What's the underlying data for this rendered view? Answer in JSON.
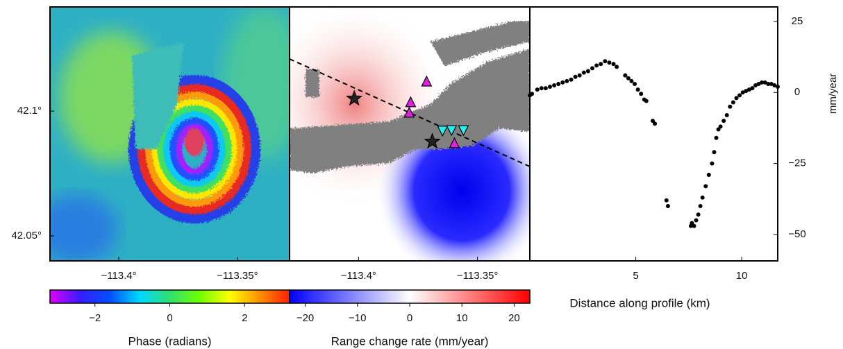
{
  "chart_data": [
    {
      "type": "map",
      "xlim": [
        -113.429,
        -113.328
      ],
      "ylim": [
        42.04,
        42.1417
      ],
      "xticks": [
        {
          "value": -113.4,
          "label": "−113.4°"
        },
        {
          "value": -113.35,
          "label": "−113.35°"
        }
      ],
      "yticks": [
        {
          "value": 42.1,
          "label": "42.1°"
        },
        {
          "value": 42.05,
          "label": "42.05°"
        }
      ],
      "colorbar": {
        "label": "Phase (radians)",
        "lim": [
          -3.2,
          3.2
        ],
        "ticks": [
          {
            "value": -2,
            "label": "−2"
          },
          0,
          2
        ],
        "colors": [
          "#e000ff",
          "#3a1cff",
          "#0050ff",
          "#00d8ff",
          "#30e070",
          "#70ff00",
          "#ffff00",
          "#ff9000",
          "#ff2000"
        ]
      }
    },
    {
      "type": "map",
      "xlim": [
        -113.429,
        -113.328
      ],
      "ylim": [
        42.04,
        42.1417
      ],
      "xticks": [
        {
          "value": -113.4,
          "label": "−113.4°"
        },
        {
          "value": -113.35,
          "label": "−113.35°"
        }
      ],
      "colorbar": {
        "label": "Range change rate (mm/year)",
        "lim": [
          -23,
          23
        ],
        "ticks": [
          {
            "value": -20,
            "label": "−20"
          },
          {
            "value": -10,
            "label": "−10"
          },
          0,
          10,
          20
        ],
        "colors": [
          "#0000ff",
          "#ffffff",
          "#ff0000"
        ]
      },
      "markers": [
        {
          "shape": "star",
          "color": "#222222",
          "x": -113.4018,
          "y": 42.105
        },
        {
          "shape": "star",
          "color": "#222222",
          "x": -113.369,
          "y": 42.0878
        },
        {
          "shape": "triangle-up",
          "color": "#e020e0",
          "x": -113.3714,
          "y": 42.1117
        },
        {
          "shape": "triangle-up",
          "color": "#e020e0",
          "x": -113.3781,
          "y": 42.1034
        },
        {
          "shape": "triangle-up",
          "color": "#e020e0",
          "x": -113.3787,
          "y": 42.0992
        },
        {
          "shape": "triangle-up",
          "color": "#e020e0",
          "x": -113.3597,
          "y": 42.087
        },
        {
          "shape": "triangle-down",
          "color": "#20f0f0",
          "x": -113.3647,
          "y": 42.0923
        },
        {
          "shape": "triangle-down",
          "color": "#20f0f0",
          "x": -113.3609,
          "y": 42.0925
        },
        {
          "shape": "triangle-down",
          "color": "#20f0f0",
          "x": -113.3559,
          "y": 42.0925
        }
      ]
    },
    {
      "type": "scatter",
      "color": "#000000",
      "xlabel": "Distance along profile (km)",
      "ylabel": "mm/year",
      "xlim": [
        0,
        11.7
      ],
      "ylim": [
        -59.3,
        30.1
      ],
      "xticks": [
        5,
        10
      ],
      "yticks": [
        25,
        0,
        {
          "value": -25,
          "label": "−25"
        },
        {
          "value": -50,
          "label": "−50"
        }
      ],
      "x": [
        0.0,
        0.1,
        0.35,
        0.55,
        0.75,
        0.95,
        1.15,
        1.35,
        1.55,
        1.75,
        1.95,
        2.15,
        2.35,
        2.55,
        2.75,
        2.95,
        3.15,
        3.35,
        3.55,
        3.75,
        3.95,
        4.1,
        4.5,
        4.65,
        4.8,
        4.95,
        5.1,
        5.25,
        5.4,
        5.5,
        5.8,
        5.9,
        6.45,
        6.52,
        7.6,
        7.65,
        7.75,
        7.85,
        7.95,
        8.05,
        8.15,
        8.3,
        8.45,
        8.6,
        8.7,
        8.8,
        8.9,
        9.0,
        9.15,
        9.3,
        9.45,
        9.6,
        9.75,
        9.9,
        10.05,
        10.2,
        10.35,
        10.5,
        10.65,
        10.8,
        10.95,
        11.1,
        11.25,
        11.4,
        11.55,
        11.7
      ],
      "values": [
        -1,
        -0.5,
        1,
        1.5,
        1.5,
        2,
        2.5,
        3,
        3.5,
        4,
        4.5,
        5.5,
        6,
        7,
        7.5,
        8.5,
        9.5,
        10,
        11,
        10.5,
        10,
        9,
        6,
        5,
        4,
        3,
        1,
        -0.5,
        -2.5,
        -3,
        -10,
        -11,
        -38,
        -40,
        -47,
        -46,
        -47,
        -45,
        -43,
        -40,
        -37,
        -33,
        -29,
        -25,
        -21,
        -16,
        -13,
        -12,
        -10,
        -8,
        -5,
        -3.5,
        -2,
        -1,
        0,
        0.5,
        1,
        1.5,
        2.5,
        3,
        3.5,
        3.5,
        3,
        3,
        2.5,
        2
      ]
    }
  ]
}
